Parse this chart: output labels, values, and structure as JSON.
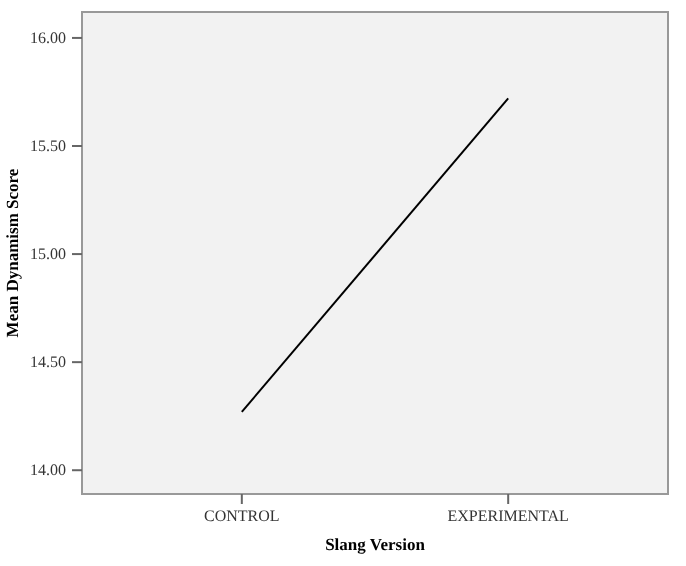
{
  "chart_data": {
    "type": "line",
    "xlabel": "Slang Version",
    "ylabel": "Mean Dynamism Score",
    "categories": [
      "CONTROL",
      "EXPERIMENTAL"
    ],
    "series": [
      {
        "color": "#000000",
        "values": [
          14.27,
          15.72
        ]
      }
    ],
    "ylim": [
      13.89,
      16.12
    ],
    "yticks": [
      {
        "value": 14,
        "label": "14.00"
      },
      {
        "value": 14.5,
        "label": "14.50"
      },
      {
        "value": 15,
        "label": "15.00"
      },
      {
        "value": 15.5,
        "label": "15.50"
      },
      {
        "value": 16,
        "label": "16.00"
      }
    ],
    "grid": false,
    "marker": "none",
    "line_style": "solid"
  }
}
